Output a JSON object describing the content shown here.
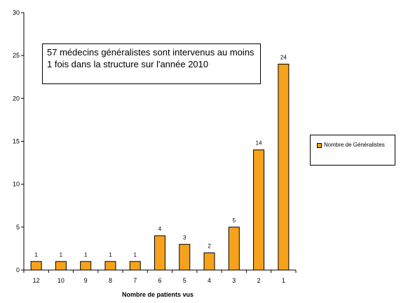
{
  "chart_data": {
    "type": "bar",
    "categories": [
      "12",
      "10",
      "9",
      "8",
      "7",
      "6",
      "5",
      "4",
      "3",
      "2",
      "1"
    ],
    "series": [
      {
        "name": "Nombre de Généralistes",
        "values": [
          1,
          1,
          1,
          1,
          1,
          4,
          3,
          2,
          5,
          14,
          24
        ]
      }
    ],
    "data_labels": [
      "1",
      "1",
      "1",
      "1",
      "1",
      "4",
      "3",
      "2",
      "5",
      "14",
      "24"
    ],
    "xlabel": "Nombre de patients vus",
    "ylabel": "",
    "ylim": [
      0,
      30
    ],
    "yticks": [
      0,
      5,
      10,
      15,
      20,
      25,
      30
    ],
    "ytick_labels": [
      "0",
      "5",
      "10",
      "15",
      "20",
      "25",
      "30"
    ],
    "grid": false,
    "legend_position": "right",
    "bar_color": "#f7a21b",
    "annotation": "57 médecins généralistes sont intervenus au moins 1 fois dans la structure sur l'année 2010"
  }
}
